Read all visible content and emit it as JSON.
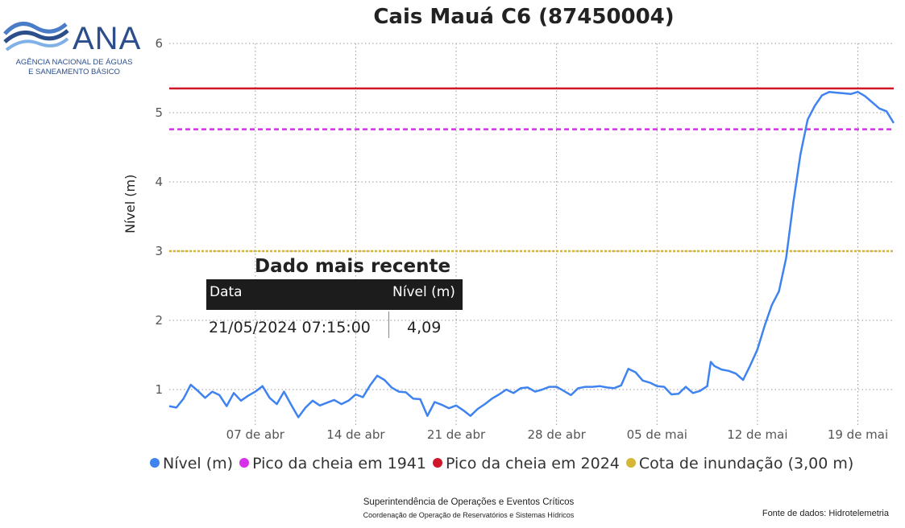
{
  "logo": {
    "name": "ANA",
    "subtitle_line1": "AGÊNCIA NACIONAL DE ÁGUAS",
    "subtitle_line2": "E SANEAMENTO BÁSICO"
  },
  "chart_data": {
    "type": "line",
    "title": "Cais Mauá C6 (87450004)",
    "ylabel": "Nível (m)",
    "xlabel": "",
    "ylim": [
      0.5,
      6
    ],
    "yticks": [
      1,
      2,
      3,
      4,
      5,
      6
    ],
    "xticks": [
      "07 de abr",
      "14 de abr",
      "21 de abr",
      "28 de abr",
      "05 de mai",
      "12 de mai",
      "19 de mai"
    ],
    "grid": true,
    "legend_position": "bottom",
    "x_domain": [
      "2024-04-01 00:00",
      "2024-05-21 12:00"
    ],
    "series": [
      {
        "name": "Nível (m)",
        "color": "#3f83f0",
        "points": [
          [
            "2024-04-01 00:00",
            0.76
          ],
          [
            "2024-04-01 12:00",
            0.74
          ],
          [
            "2024-04-02 00:00",
            0.87
          ],
          [
            "2024-04-02 12:00",
            1.07
          ],
          [
            "2024-04-03 00:00",
            0.98
          ],
          [
            "2024-04-03 12:00",
            0.88
          ],
          [
            "2024-04-04 00:00",
            0.97
          ],
          [
            "2024-04-04 12:00",
            0.92
          ],
          [
            "2024-04-05 00:00",
            0.76
          ],
          [
            "2024-04-05 12:00",
            0.95
          ],
          [
            "2024-04-06 00:00",
            0.84
          ],
          [
            "2024-04-06 12:00",
            0.91
          ],
          [
            "2024-04-07 00:00",
            0.97
          ],
          [
            "2024-04-07 12:00",
            1.05
          ],
          [
            "2024-04-08 00:00",
            0.88
          ],
          [
            "2024-04-08 12:00",
            0.79
          ],
          [
            "2024-04-09 00:00",
            0.97
          ],
          [
            "2024-04-09 12:00",
            0.78
          ],
          [
            "2024-04-10 00:00",
            0.6
          ],
          [
            "2024-04-10 12:00",
            0.74
          ],
          [
            "2024-04-11 00:00",
            0.84
          ],
          [
            "2024-04-11 12:00",
            0.77
          ],
          [
            "2024-04-12 00:00",
            0.81
          ],
          [
            "2024-04-12 12:00",
            0.85
          ],
          [
            "2024-04-13 00:00",
            0.79
          ],
          [
            "2024-04-13 12:00",
            0.84
          ],
          [
            "2024-04-14 00:00",
            0.93
          ],
          [
            "2024-04-14 12:00",
            0.89
          ],
          [
            "2024-04-15 00:00",
            1.06
          ],
          [
            "2024-04-15 12:00",
            1.2
          ],
          [
            "2024-04-16 00:00",
            1.14
          ],
          [
            "2024-04-16 12:00",
            1.03
          ],
          [
            "2024-04-17 00:00",
            0.97
          ],
          [
            "2024-04-17 12:00",
            0.96
          ],
          [
            "2024-04-18 00:00",
            0.87
          ],
          [
            "2024-04-18 12:00",
            0.86
          ],
          [
            "2024-04-19 00:00",
            0.62
          ],
          [
            "2024-04-19 12:00",
            0.82
          ],
          [
            "2024-04-20 00:00",
            0.78
          ],
          [
            "2024-04-20 12:00",
            0.73
          ],
          [
            "2024-04-21 00:00",
            0.77
          ],
          [
            "2024-04-21 12:00",
            0.7
          ],
          [
            "2024-04-22 00:00",
            0.62
          ],
          [
            "2024-04-22 12:00",
            0.72
          ],
          [
            "2024-04-23 00:00",
            0.79
          ],
          [
            "2024-04-23 12:00",
            0.87
          ],
          [
            "2024-04-24 00:00",
            0.93
          ],
          [
            "2024-04-24 12:00",
            1.0
          ],
          [
            "2024-04-25 00:00",
            0.95
          ],
          [
            "2024-04-25 12:00",
            1.02
          ],
          [
            "2024-04-26 00:00",
            1.03
          ],
          [
            "2024-04-26 12:00",
            0.97
          ],
          [
            "2024-04-27 00:00",
            1.0
          ],
          [
            "2024-04-27 12:00",
            1.04
          ],
          [
            "2024-04-28 00:00",
            1.04
          ],
          [
            "2024-04-28 12:00",
            0.98
          ],
          [
            "2024-04-29 00:00",
            0.92
          ],
          [
            "2024-04-29 12:00",
            1.02
          ],
          [
            "2024-04-30 00:00",
            1.04
          ],
          [
            "2024-04-30 12:00",
            1.04
          ],
          [
            "2024-05-01 00:00",
            1.05
          ],
          [
            "2024-05-01 12:00",
            1.03
          ],
          [
            "2024-05-02 00:00",
            1.02
          ],
          [
            "2024-05-02 12:00",
            1.06
          ],
          [
            "2024-05-03 00:00",
            1.3
          ],
          [
            "2024-05-03 12:00",
            1.25
          ],
          [
            "2024-05-04 00:00",
            1.13
          ],
          [
            "2024-05-04 12:00",
            1.1
          ],
          [
            "2024-05-05 00:00",
            1.05
          ],
          [
            "2024-05-05 12:00",
            1.04
          ],
          [
            "2024-05-06 00:00",
            0.93
          ],
          [
            "2024-05-06 12:00",
            0.94
          ],
          [
            "2024-05-07 00:00",
            1.04
          ],
          [
            "2024-05-07 12:00",
            0.95
          ],
          [
            "2024-05-08 00:00",
            0.98
          ],
          [
            "2024-05-08 12:00",
            1.05
          ],
          [
            "2024-05-08 18:00",
            1.4
          ],
          [
            "2024-05-09 00:00",
            1.34
          ],
          [
            "2024-05-09 12:00",
            1.29
          ],
          [
            "2024-05-10 00:00",
            1.27
          ],
          [
            "2024-05-10 12:00",
            1.23
          ],
          [
            "2024-05-11 00:00",
            1.14
          ],
          [
            "2024-05-11 12:00",
            1.35
          ],
          [
            "2024-05-12 00:00",
            1.58
          ],
          [
            "2024-05-12 12:00",
            1.92
          ],
          [
            "2024-05-13 00:00",
            2.22
          ],
          [
            "2024-05-13 12:00",
            2.42
          ],
          [
            "2024-05-14 00:00",
            2.9
          ],
          [
            "2024-05-14 12:00",
            3.7
          ],
          [
            "2024-05-15 00:00",
            4.4
          ],
          [
            "2024-05-15 12:00",
            4.9
          ],
          [
            "2024-05-16 00:00",
            5.1
          ],
          [
            "2024-05-16 12:00",
            5.25
          ],
          [
            "2024-05-17 00:00",
            5.3
          ],
          [
            "2024-05-17 12:00",
            5.29
          ],
          [
            "2024-05-18 00:00",
            5.28
          ],
          [
            "2024-05-18 12:00",
            5.27
          ],
          [
            "2024-05-19 00:00",
            5.3
          ],
          [
            "2024-05-19 12:00",
            5.24
          ],
          [
            "2024-05-20 00:00",
            5.15
          ],
          [
            "2024-05-20 12:00",
            5.06
          ],
          [
            "2024-05-21 00:00",
            5.02
          ],
          [
            "2024-05-21 12:00",
            4.85
          ]
        ]
      },
      {
        "name": "Pico da cheia em 1941",
        "color": "#d630e8",
        "style": "dashed",
        "value": 4.76
      },
      {
        "name": "Pico da cheia em 2024",
        "color": "#d0172a",
        "style": "solid",
        "value": 5.35
      },
      {
        "name": "Cota de inundação (3,00 m)",
        "color": "#d6b735",
        "style": "dotted",
        "value": 3.0
      }
    ]
  },
  "recent": {
    "title": "Dado mais recente",
    "header_date": "Data",
    "header_level": "Nível (m)",
    "date": "21/05/2024 07:15:00",
    "level": "4,09"
  },
  "footer": {
    "line1": "Superintendência de Operações e Eventos Críticos",
    "line2": "Coordenação de Operação de Reservatórios e Sistemas Hídricos",
    "source": "Fonte de dados: Hidrotelemetria"
  }
}
